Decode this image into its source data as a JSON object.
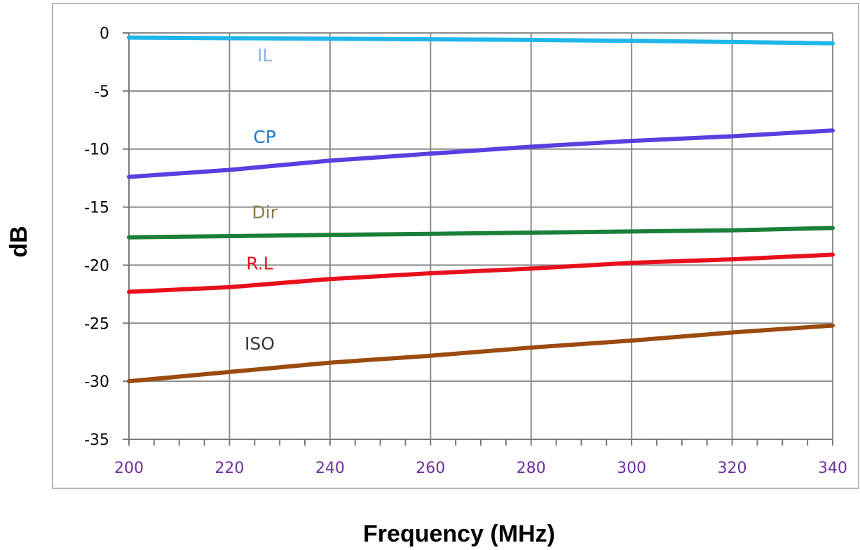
{
  "chart_data": {
    "type": "line",
    "title": "",
    "xlabel": "Frequency (MHz)",
    "ylabel": "dB",
    "xlim": [
      200,
      340
    ],
    "ylim": [
      -35,
      0
    ],
    "x_ticks": [
      "200",
      "220",
      "240",
      "260",
      "280",
      "300",
      "320",
      "340"
    ],
    "y_ticks": [
      "0",
      "-5",
      "-10",
      "-15",
      "-20",
      "-25",
      "-30",
      "-35"
    ],
    "grid": true,
    "legend": "inline labels",
    "x_tick_color": "#7030a0",
    "series": [
      {
        "name": "IL",
        "color": "#1fb6ea",
        "label_color": "#8fb4e3",
        "label_x": 227,
        "x": [
          200,
          220,
          240,
          260,
          280,
          300,
          320,
          340
        ],
        "y": [
          -0.4,
          -0.45,
          -0.5,
          -0.55,
          -0.6,
          -0.68,
          -0.78,
          -0.9
        ]
      },
      {
        "name": "CP",
        "color": "#5b3ee0",
        "label_color": "#1f78c8",
        "label_x": 227,
        "x": [
          200,
          220,
          240,
          260,
          280,
          300,
          320,
          340
        ],
        "y": [
          -12.4,
          -11.8,
          -11.0,
          -10.4,
          -9.8,
          -9.3,
          -8.9,
          -8.4
        ]
      },
      {
        "name": "Dir",
        "color": "#1a7f3a",
        "label_color": "#8b7e4a",
        "label_x": 227,
        "x": [
          200,
          220,
          240,
          260,
          280,
          300,
          320,
          340
        ],
        "y": [
          -17.6,
          -17.5,
          -17.4,
          -17.3,
          -17.2,
          -17.1,
          -17.0,
          -16.8
        ]
      },
      {
        "name": "R.L",
        "color": "#e8101c",
        "label_color": "#e8101c",
        "label_x": 226,
        "x": [
          200,
          220,
          240,
          260,
          280,
          300,
          320,
          340
        ],
        "y": [
          -22.3,
          -21.9,
          -21.2,
          -20.7,
          -20.3,
          -19.8,
          -19.5,
          -19.1
        ]
      },
      {
        "name": "ISO",
        "color": "#9b4a10",
        "label_color": "#3a3a3a",
        "label_x": 226,
        "x": [
          200,
          220,
          240,
          260,
          280,
          300,
          320,
          340
        ],
        "y": [
          -30.0,
          -29.2,
          -28.4,
          -27.8,
          -27.1,
          -26.5,
          -25.8,
          -25.2
        ]
      }
    ]
  }
}
